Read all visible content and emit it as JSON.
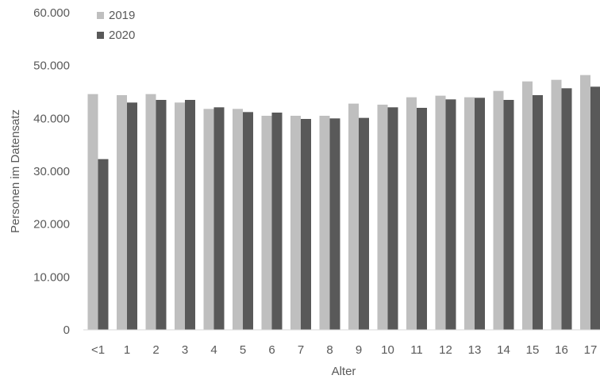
{
  "chart_data": {
    "type": "bar",
    "title": "",
    "xlabel": "Alter",
    "ylabel": "Personen im Datensatz",
    "ylim": [
      0,
      60000
    ],
    "yticks": [
      0,
      10000,
      20000,
      30000,
      40000,
      50000,
      60000
    ],
    "ytick_labels": [
      "0",
      "10.000",
      "20.000",
      "30.000",
      "40.000",
      "50.000",
      "60.000"
    ],
    "grid": false,
    "legend_position": "top-left",
    "categories": [
      "<1",
      "1",
      "2",
      "3",
      "4",
      "5",
      "6",
      "7",
      "8",
      "9",
      "10",
      "11",
      "12",
      "13",
      "14",
      "15",
      "16",
      "17"
    ],
    "series": [
      {
        "name": "2019",
        "color": "#bfbfbf",
        "values": [
          44600,
          44400,
          44600,
          43000,
          41800,
          41800,
          40500,
          40500,
          40500,
          42800,
          42600,
          44000,
          44300,
          44000,
          45200,
          47000,
          47300,
          48200
        ]
      },
      {
        "name": "2020",
        "color": "#595959",
        "values": [
          32300,
          43000,
          43500,
          43500,
          42100,
          41200,
          41100,
          39900,
          40000,
          40100,
          42100,
          42000,
          43600,
          43900,
          43500,
          44400,
          45700,
          46000
        ]
      }
    ]
  }
}
